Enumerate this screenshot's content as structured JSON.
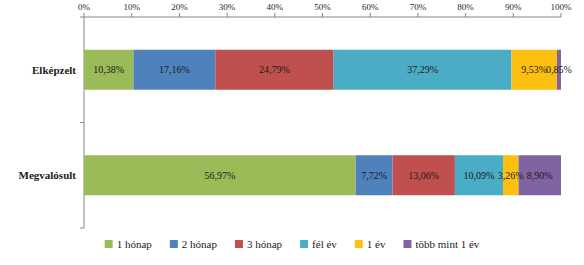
{
  "chart_data": {
    "type": "bar",
    "orientation": "horizontal",
    "stacked": true,
    "data_labels": true,
    "grid": false,
    "legend": "bottom",
    "categories": [
      "Elképzelt",
      "Megvalósult"
    ],
    "xlim": [
      0,
      100
    ],
    "xticks": [
      {
        "value": 0,
        "label": "0%"
      },
      {
        "value": 10,
        "label": "10%"
      },
      {
        "value": 20,
        "label": "20%"
      },
      {
        "value": 30,
        "label": "30%"
      },
      {
        "value": 40,
        "label": "40%"
      },
      {
        "value": 50,
        "label": "50%"
      },
      {
        "value": 60,
        "label": "60%"
      },
      {
        "value": 70,
        "label": "70%"
      },
      {
        "value": 80,
        "label": "80%"
      },
      {
        "value": 90,
        "label": "90%"
      },
      {
        "value": 100,
        "label": "100%"
      }
    ],
    "series": [
      {
        "name": "1 hónap",
        "color": "#9bbb59",
        "values": [
          10.38,
          56.97
        ],
        "value_labels": [
          "10,38%",
          "56,97%"
        ]
      },
      {
        "name": "2 hónap",
        "color": "#4f81bd",
        "values": [
          17.16,
          7.72
        ],
        "value_labels": [
          "17,16%",
          "7,72%"
        ]
      },
      {
        "name": "3 hónap",
        "color": "#c0504d",
        "values": [
          24.79,
          13.06
        ],
        "value_labels": [
          "24,79%",
          "13,06%"
        ]
      },
      {
        "name": "fél év",
        "color": "#4bacc6",
        "values": [
          37.29,
          10.09
        ],
        "value_labels": [
          "37,29%",
          "10,09%"
        ]
      },
      {
        "name": "1 év",
        "color": "#fdc010",
        "values": [
          9.53,
          3.26
        ],
        "value_labels": [
          "9,53%",
          "3,26%"
        ]
      },
      {
        "name": "több mint 1 év",
        "color": "#8064a2",
        "values": [
          0.85,
          8.9
        ],
        "value_labels": [
          "0,85%",
          "8,90%"
        ]
      }
    ]
  }
}
